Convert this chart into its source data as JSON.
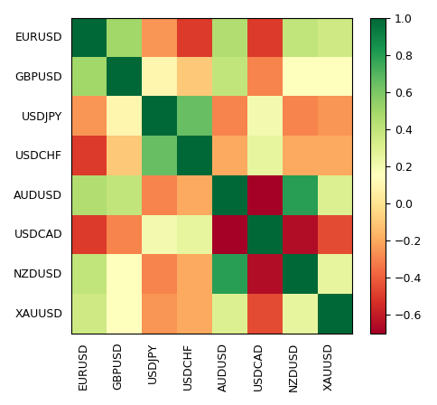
{
  "currencies": [
    "EURUSD",
    "GBPUSD",
    "USDJPY",
    "USDCHF",
    "AUDUSD",
    "USDCAD",
    "NZDUSD",
    "XAUUSD"
  ],
  "matrix": [
    [
      1.0,
      0.5,
      -0.25,
      -0.5,
      0.45,
      -0.5,
      0.4,
      0.35
    ],
    [
      0.5,
      1.0,
      0.1,
      -0.1,
      0.4,
      -0.3,
      0.15,
      0.15
    ],
    [
      -0.25,
      0.1,
      1.0,
      0.65,
      -0.3,
      0.2,
      -0.3,
      -0.25
    ],
    [
      -0.5,
      -0.1,
      0.65,
      1.0,
      -0.2,
      0.25,
      -0.2,
      -0.2
    ],
    [
      0.45,
      0.4,
      -0.3,
      -0.2,
      1.0,
      -0.7,
      0.8,
      0.3
    ],
    [
      -0.5,
      -0.3,
      0.2,
      0.25,
      -0.7,
      1.0,
      -0.65,
      -0.45
    ],
    [
      0.4,
      0.15,
      -0.3,
      -0.2,
      0.8,
      -0.65,
      1.0,
      0.25
    ],
    [
      0.35,
      0.15,
      -0.25,
      -0.2,
      0.3,
      -0.45,
      0.25,
      1.0
    ]
  ],
  "vmin": -0.7,
  "vmax": 1.0,
  "cmap": "RdYlGn",
  "figsize": [
    4.84,
    4.48
  ],
  "dpi": 100,
  "colorbar_ticks": [
    1.0,
    0.8,
    0.6,
    0.4,
    0.2,
    0.0,
    -0.2,
    -0.4,
    -0.6
  ],
  "colorbar_fontsize": 9,
  "tick_fontsize": 9
}
